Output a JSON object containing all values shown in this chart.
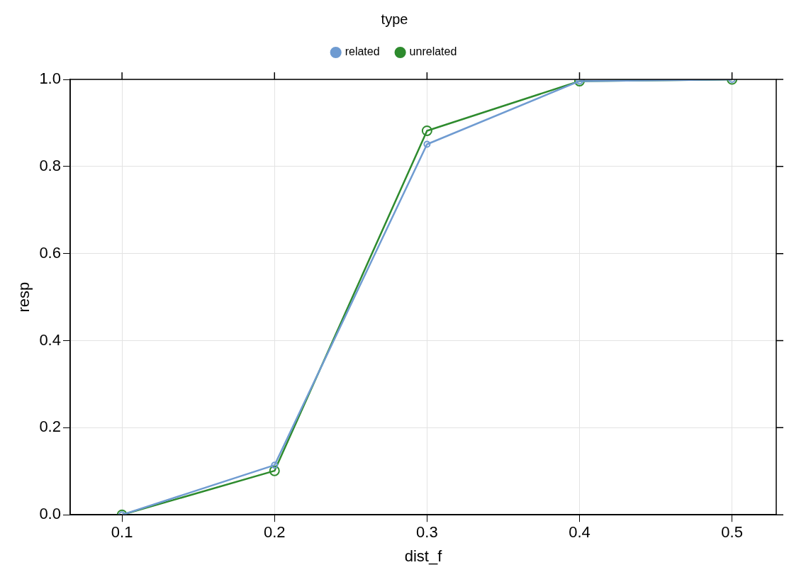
{
  "chart_data": {
    "type": "line",
    "xlabel": "dist_f",
    "ylabel": "resp",
    "legend_title": "type",
    "x": [
      0.1,
      0.2,
      0.3,
      0.4,
      0.5
    ],
    "series": [
      {
        "name": "related",
        "color": "#6f9bd1",
        "values": [
          0.0,
          0.114,
          0.851,
          0.996,
          1.0
        ]
      },
      {
        "name": "unrelated",
        "color": "#2e8b2e",
        "values": [
          0.0,
          0.101,
          0.882,
          0.996,
          1.0
        ]
      }
    ],
    "xlim": [
      0.066,
      0.529
    ],
    "xticks": [
      0.1,
      0.2,
      0.3,
      0.4,
      0.5
    ],
    "ylim": [
      0,
      1
    ],
    "yticks": [
      {
        "value": 0,
        "label": "0.0"
      },
      0.2,
      0.4,
      0.6,
      0.8,
      {
        "value": 1,
        "label": "1.0"
      }
    ],
    "grid": true,
    "legend": "top",
    "marker": "circle",
    "line_style": "solid"
  }
}
